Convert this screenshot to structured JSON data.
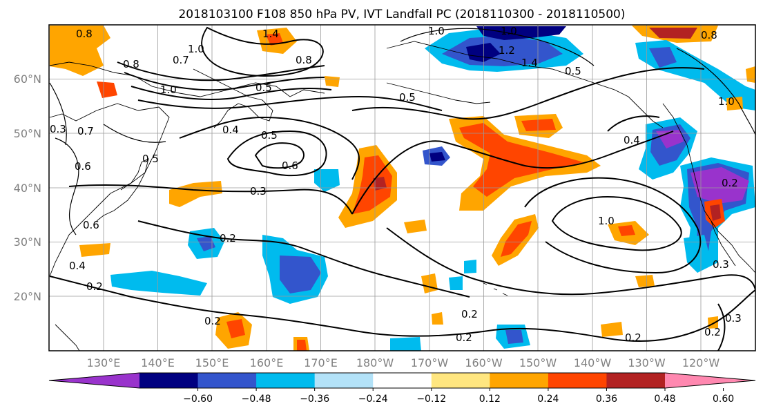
{
  "title": "2018103100 F108 850 hPa PV, IVT Landfall PC (2018110300 - 2018110500)",
  "lat_labels": [
    "60°N",
    "50°N",
    "40°N",
    "30°N",
    "20°N"
  ],
  "lon_labels": [
    "130°E",
    "140°E",
    "150°E",
    "160°E",
    "170°E",
    "180°W",
    "170°W",
    "160°W",
    "150°W",
    "140°W",
    "130°W",
    "120°W"
  ],
  "colorbar": {
    "colors": [
      "#9933cc",
      "#000080",
      "#3355cc",
      "#00bbee",
      "#b3e2f8",
      "#ffffff",
      "#ffe680",
      "#ffa500",
      "#ff4500",
      "#b22222",
      "#ff88b0"
    ],
    "tick_labels": [
      "-0.60",
      "-0.48",
      "-0.36",
      "-0.24",
      "-0.12",
      "0.12",
      "0.24",
      "0.36",
      "0.48",
      "0.60"
    ]
  },
  "contour_labels": [
    "0.8",
    "1.4",
    "0.8",
    "1.0",
    "0.7",
    "1.0",
    "0.8",
    "1.0",
    "0.5",
    "0.5",
    "0.4",
    "0.5",
    "0.6",
    "0.3",
    "0.3",
    "0.6",
    "0.7",
    "0.5",
    "0.2",
    "0.2",
    "0.2",
    "0.6",
    "0.4",
    "0.3",
    "0.2",
    "0.2",
    "0.2",
    "0.3",
    "0.2",
    "0.4",
    "0.2",
    "1.0",
    "0.8",
    "0.5",
    "1.2",
    "1.4",
    "1.0"
  ]
}
